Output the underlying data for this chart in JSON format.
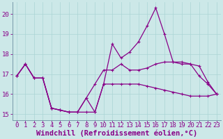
{
  "x": [
    0,
    1,
    2,
    3,
    4,
    5,
    6,
    7,
    8,
    9,
    10,
    11,
    12,
    13,
    14,
    15,
    16,
    17,
    18,
    19,
    20,
    21,
    22,
    23
  ],
  "line1": [
    16.9,
    17.5,
    16.8,
    16.8,
    15.3,
    15.2,
    15.1,
    15.1,
    15.1,
    15.1,
    16.5,
    16.5,
    16.5,
    16.5,
    16.5,
    16.4,
    16.3,
    16.2,
    16.1,
    16.0,
    15.9,
    15.9,
    15.9,
    16.0
  ],
  "line2": [
    16.9,
    17.5,
    16.8,
    16.8,
    15.3,
    15.2,
    15.1,
    15.1,
    15.8,
    16.5,
    17.2,
    17.2,
    17.5,
    17.2,
    17.2,
    17.3,
    17.5,
    17.6,
    17.6,
    17.5,
    17.5,
    17.4,
    16.6,
    16.0
  ],
  "line3": [
    16.9,
    17.5,
    16.8,
    16.8,
    15.3,
    15.2,
    15.1,
    15.1,
    15.8,
    15.1,
    16.5,
    18.5,
    17.8,
    18.1,
    18.6,
    19.4,
    20.3,
    19.0,
    17.6,
    17.6,
    17.5,
    16.9,
    16.5,
    16.0
  ],
  "background_color": "#cce8e8",
  "grid_color": "#aad4d4",
  "line_color": "#880088",
  "xlabel": "Windchill (Refroidissement éolien,°C)",
  "ylim": [
    14.7,
    20.6
  ],
  "xlim": [
    -0.5,
    23.5
  ],
  "yticks": [
    15,
    16,
    17,
    18,
    19,
    20
  ],
  "axis_fontsize": 6.5,
  "label_fontsize": 7.5
}
